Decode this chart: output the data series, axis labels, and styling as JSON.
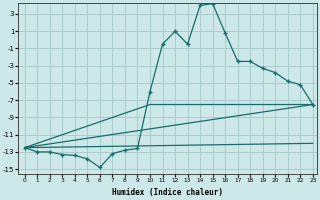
{
  "xlabel": "Humidex (Indice chaleur)",
  "bg_color": "#cce8e8",
  "grid_color": "#aacccc",
  "line_color": "#1a6b6b",
  "xlim": [
    -0.5,
    23.3
  ],
  "ylim": [
    -15.5,
    4.3
  ],
  "yticks": [
    -15,
    -13,
    -11,
    -9,
    -7,
    -5,
    -3,
    -1,
    1,
    3
  ],
  "xticks": [
    0,
    1,
    2,
    3,
    4,
    5,
    6,
    7,
    8,
    9,
    10,
    11,
    12,
    13,
    14,
    15,
    16,
    17,
    18,
    19,
    20,
    21,
    22,
    23
  ],
  "line1_x": [
    0,
    1,
    2,
    3,
    4,
    5,
    6,
    7,
    8,
    9,
    10,
    11,
    12,
    13,
    14,
    15,
    16,
    17,
    18,
    19,
    20,
    21,
    22,
    23
  ],
  "line1_y": [
    -12.5,
    -13,
    -13,
    -13.3,
    -13.4,
    -13.8,
    -14.8,
    -13.2,
    -12.8,
    -12.6,
    -6.0,
    -0.5,
    1.0,
    -0.5,
    4.0,
    4.2,
    0.8,
    -2.5,
    -2.5,
    -3.3,
    -3.8,
    -4.8,
    -5.2,
    -7.5
  ],
  "line2_x": [
    0,
    23
  ],
  "line2_y": [
    -12.5,
    -7.5
  ],
  "line3_x": [
    0,
    23
  ],
  "line3_y": [
    -12.5,
    -12.0
  ],
  "line4_x": [
    0,
    10,
    23
  ],
  "line4_y": [
    -12.5,
    -7.5,
    -7.5
  ]
}
